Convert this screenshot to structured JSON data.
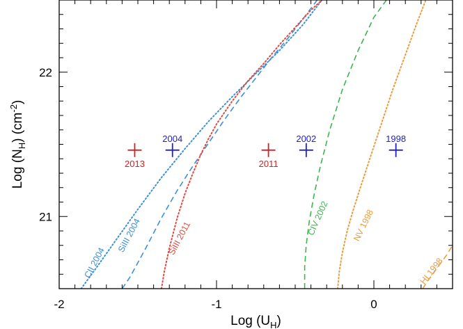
{
  "chart_data": {
    "type": "line",
    "title": "",
    "xlabel": {
      "main": "Log (U",
      "sub": "H",
      "tail": ")"
    },
    "ylabel": {
      "main": "Log (N",
      "sub": "H",
      "mid": ")  (cm",
      "sup": "-2",
      "tail": ")"
    },
    "xlim": [
      -2.0,
      0.5
    ],
    "ylim": [
      20.5,
      22.5
    ],
    "xticks": [
      -2,
      -1,
      0
    ],
    "xtick_labels": [
      "-2",
      "-1",
      "0"
    ],
    "yticks": [
      21,
      22
    ],
    "ytick_labels": [
      "21",
      "22"
    ],
    "x_minor_step": 0.1,
    "y_minor_step": 0.1,
    "grid": false,
    "series": [
      {
        "name": "CII 2004",
        "color": "#3a8fdc",
        "style": "dotted",
        "x": [
          -1.86,
          -1.78,
          -1.65,
          -1.5,
          -1.35,
          -1.2,
          -1.05,
          -0.9,
          -0.75,
          -0.6,
          -0.45,
          -0.33
        ],
        "y": [
          20.5,
          20.62,
          20.82,
          21.05,
          21.27,
          21.47,
          21.66,
          21.83,
          21.99,
          22.15,
          22.33,
          22.5
        ]
      },
      {
        "name": "SiIII 2004",
        "color": "#3a8fdc",
        "style": "dashed",
        "x": [
          -1.6,
          -1.55,
          -1.45,
          -1.35,
          -1.25,
          -1.15,
          -1.05,
          -0.95,
          -0.85,
          -0.75,
          -0.65,
          -0.55,
          -0.45,
          -0.36
        ],
        "y": [
          20.5,
          20.58,
          20.78,
          20.99,
          21.18,
          21.35,
          21.51,
          21.67,
          21.82,
          21.96,
          22.1,
          22.23,
          22.37,
          22.5
        ]
      },
      {
        "name": "SiIII 2011",
        "color": "#e0473e",
        "style": "dotted",
        "x": [
          -1.35,
          -1.33,
          -1.3,
          -1.25,
          -1.2,
          -1.15,
          -1.1,
          -1.05,
          -1.0,
          -0.9,
          -0.8,
          -0.7,
          -0.6,
          -0.5,
          -0.4,
          -0.33
        ],
        "y": [
          20.5,
          20.63,
          20.78,
          20.99,
          21.16,
          21.3,
          21.43,
          21.54,
          21.64,
          21.8,
          21.94,
          22.06,
          22.19,
          22.31,
          22.43,
          22.5
        ]
      },
      {
        "name": "CIV 2002",
        "color": "#3fb34f",
        "style": "dashed",
        "x": [
          -0.44,
          -0.44,
          -0.43,
          -0.41,
          -0.38,
          -0.34,
          -0.28,
          -0.2,
          -0.1,
          0.0,
          0.08
        ],
        "y": [
          20.5,
          20.65,
          20.8,
          20.97,
          21.15,
          21.35,
          21.6,
          21.88,
          22.15,
          22.38,
          22.5
        ]
      },
      {
        "name": "NV 1998",
        "color": "#ef9a3a",
        "style": "dotted",
        "x": [
          -0.23,
          -0.22,
          -0.2,
          -0.17,
          -0.13,
          -0.08,
          -0.02,
          0.05,
          0.12,
          0.2,
          0.28,
          0.33
        ],
        "y": [
          20.5,
          20.62,
          20.75,
          20.9,
          21.05,
          21.22,
          21.42,
          21.65,
          21.88,
          22.12,
          22.36,
          22.5
        ]
      },
      {
        "name": "HI 1998",
        "color": "#ef9a3a",
        "style": "dashed",
        "x": [
          0.31,
          0.34,
          0.38,
          0.42,
          0.46,
          0.5
        ],
        "y": [
          20.5,
          20.55,
          20.61,
          20.67,
          20.73,
          20.8
        ]
      }
    ],
    "curve_labels": [
      {
        "text": "CII 2004",
        "color": "#3a8fdc",
        "x": -1.76,
        "y": 20.67,
        "angle": -62
      },
      {
        "text": "SiIII 2004",
        "color": "#3a8fdc",
        "x": -1.54,
        "y": 20.86,
        "angle": -62
      },
      {
        "text": "SiIII 2011",
        "color": "#e0473e",
        "x": -1.22,
        "y": 20.84,
        "angle": -62
      },
      {
        "text": "CIV 2002",
        "color": "#3fb34f",
        "x": -0.34,
        "y": 20.98,
        "angle": -66
      },
      {
        "text": "NV 1998",
        "color": "#ef9a3a",
        "x": -0.05,
        "y": 20.93,
        "angle": -64
      },
      {
        "text": "HI 1998",
        "color": "#ef9a3a",
        "x": 0.38,
        "y": 20.61,
        "angle": -52
      }
    ],
    "points": [
      {
        "label": "2013",
        "color": "#d42020",
        "x": -1.52,
        "y": 21.46,
        "label_pos": "below"
      },
      {
        "label": "2004",
        "color": "#2020c8",
        "x": -1.28,
        "y": 21.46,
        "label_pos": "above"
      },
      {
        "label": "2011",
        "color": "#d42020",
        "x": -0.67,
        "y": 21.46,
        "label_pos": "below"
      },
      {
        "label": "2002",
        "color": "#2020c8",
        "x": -0.43,
        "y": 21.46,
        "label_pos": "above"
      },
      {
        "label": "1998",
        "color": "#2020c8",
        "x": 0.14,
        "y": 21.46,
        "label_pos": "above"
      }
    ]
  }
}
